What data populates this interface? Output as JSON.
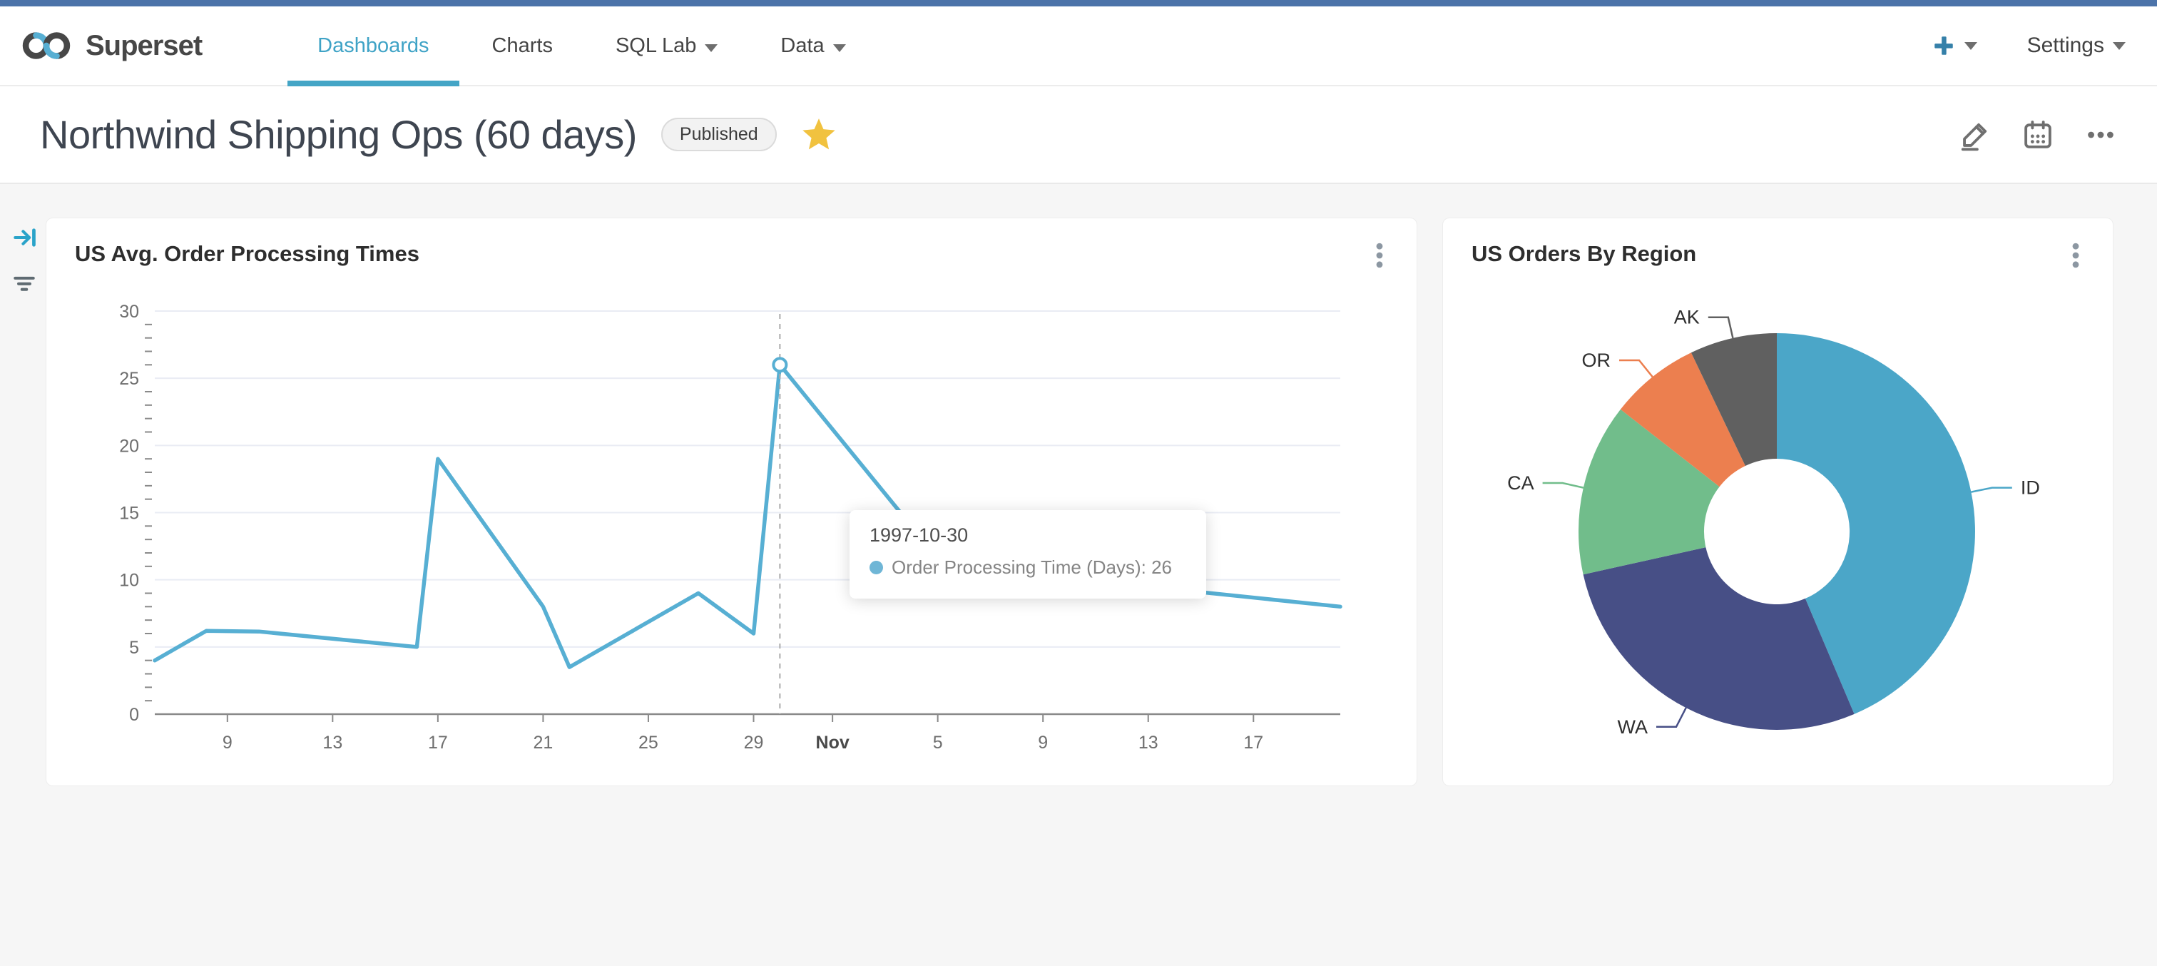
{
  "navbar": {
    "brand": "Superset",
    "items": [
      {
        "label": "Dashboards",
        "active": true,
        "caret": false
      },
      {
        "label": "Charts",
        "active": false,
        "caret": false
      },
      {
        "label": "SQL Lab",
        "active": false,
        "caret": true
      },
      {
        "label": "Data",
        "active": false,
        "caret": true
      }
    ],
    "plus_label": "+",
    "settings_label": "Settings"
  },
  "title_bar": {
    "title": "Northwind Shipping Ops (60 days)",
    "badge": "Published",
    "favorited": true
  },
  "icons": [
    "superset-logo",
    "plus-icon",
    "caret-down-icon",
    "star-icon",
    "edit-pencil-icon",
    "calendar-icon",
    "ellipsis-icon",
    "kebab-menu-icon",
    "expand-filters-icon",
    "filter-icon"
  ],
  "colors": {
    "top_strip": "#4C73A9",
    "nav_active": "#3FA3C6",
    "accent_blue": "#57AFD3",
    "star_gold": "#F1C23F",
    "dashboard_bg": "#F6F6F6"
  },
  "chart_data": [
    {
      "type": "line",
      "title": "US Avg. Order Processing Times",
      "x_unit": "day index (Oct 1 1997 = 1, Nov 1 = 32)",
      "x_domain": [
        6.24,
        51.3
      ],
      "y_domain": [
        0,
        30
      ],
      "y_ticks": [
        0,
        5,
        10,
        15,
        20,
        25,
        30
      ],
      "x_ticks": [
        {
          "d": 9,
          "label": "9"
        },
        {
          "d": 13,
          "label": "13"
        },
        {
          "d": 17,
          "label": "17"
        },
        {
          "d": 21,
          "label": "21"
        },
        {
          "d": 25,
          "label": "25"
        },
        {
          "d": 29,
          "label": "29"
        },
        {
          "d": 32,
          "label": "Nov",
          "bold": true
        },
        {
          "d": 36,
          "label": "5"
        },
        {
          "d": 40,
          "label": "9"
        },
        {
          "d": 44,
          "label": "13"
        },
        {
          "d": 48,
          "label": "17"
        }
      ],
      "series": [
        {
          "name": "Order Processing Time (Days)",
          "points": [
            [
              6.24,
              4
            ],
            [
              8.2,
              6.2
            ],
            [
              10.2,
              6.15
            ],
            [
              16.2,
              5
            ],
            [
              17,
              19
            ],
            [
              21,
              8
            ],
            [
              22,
              3.5
            ],
            [
              26.9,
              9
            ],
            [
              29,
              6
            ],
            [
              30,
              26
            ],
            [
              35,
              14
            ],
            [
              40,
              10.3
            ],
            [
              51.3,
              8
            ]
          ]
        }
      ],
      "hover": {
        "x": 30,
        "y": 26,
        "date": "1997-10-30",
        "label": "Order Processing Time (Days)",
        "value": 26
      },
      "line_color": "#57AFD3",
      "grid": true,
      "legend_position": "none",
      "xlabel": "",
      "ylabel": ""
    },
    {
      "type": "pie",
      "donut": true,
      "title": "US Orders By Region",
      "labels": [
        "ID",
        "WA",
        "CA",
        "OR",
        "AK"
      ],
      "values_deg": [
        157,
        100.5,
        50.5,
        26.4,
        25.6
      ],
      "percents": [
        43.6,
        27.9,
        14.0,
        7.3,
        7.1
      ],
      "colors": [
        "#4BA6C8",
        "#474F86",
        "#71BD8B",
        "#EC7F4F",
        "#606060"
      ],
      "legend_position": "outside-labels-with-leader-lines"
    }
  ],
  "tooltip": {
    "date": "1997-10-30",
    "series": "Order Processing Time (Days)",
    "value": "26"
  }
}
